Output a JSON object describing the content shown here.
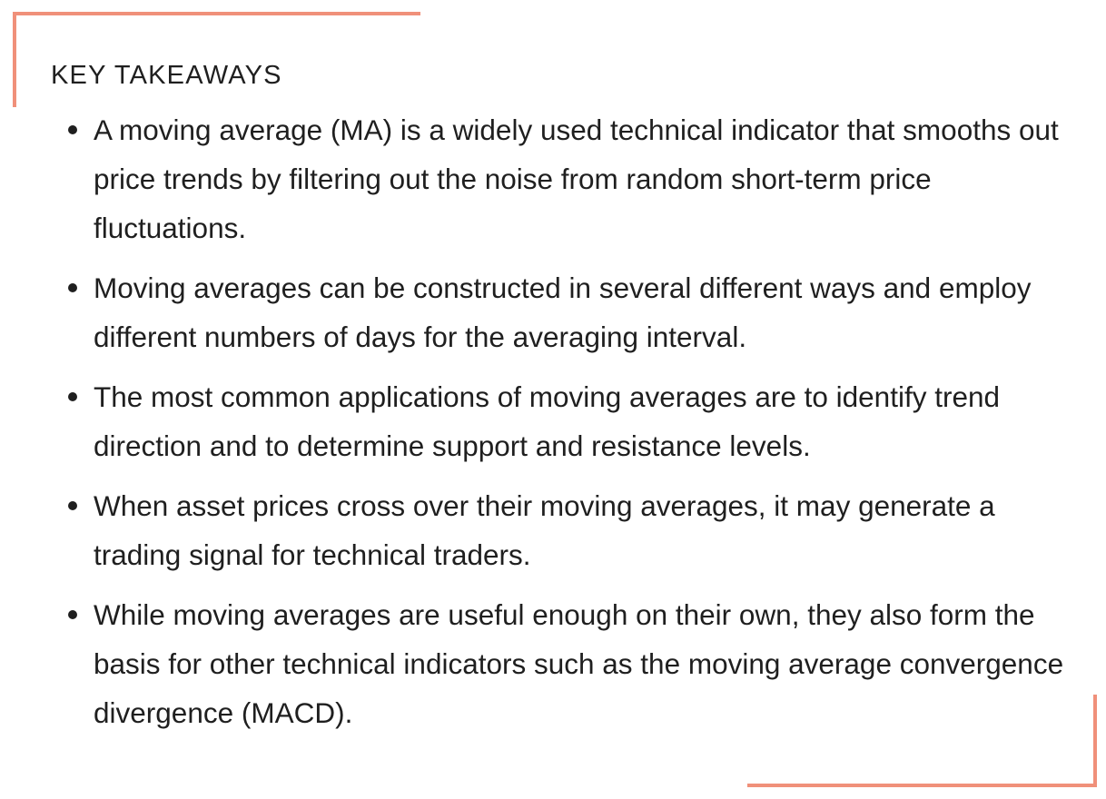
{
  "colors": {
    "accent": "#f0907a",
    "text": "#1f1f1f",
    "background": "#ffffff"
  },
  "heading": "KEY TAKEAWAYS",
  "items": [
    "A moving average (MA) is a widely used technical indicator that smooths out price trends by filtering out the noise from random short-term price fluctuations.",
    "Moving averages can be constructed in several different ways and employ different numbers of days for the averaging interval.",
    "The most common applications of moving averages are to identify trend direction and to determine support and resistance levels.",
    "When asset prices cross over their moving averages, it may generate a trading signal for technical traders.",
    "While moving averages are useful enough on their own, they also form the basis for other technical indicators such as the moving average convergence divergence (MACD)."
  ]
}
